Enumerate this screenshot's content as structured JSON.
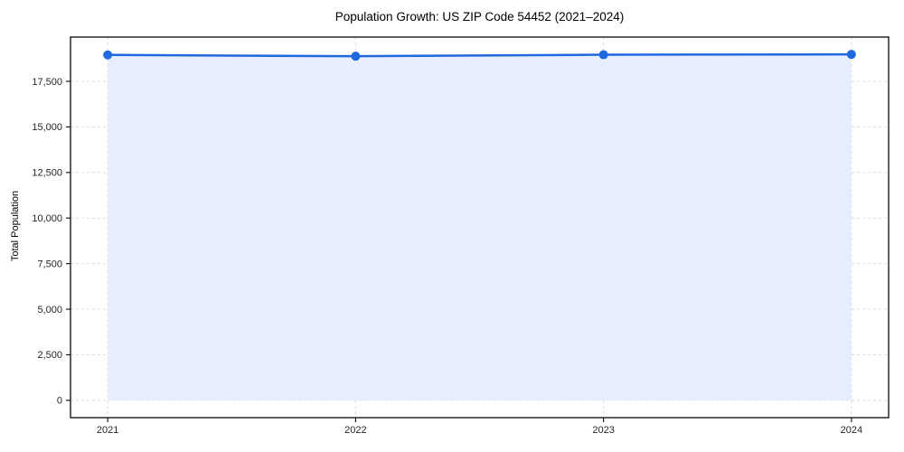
{
  "figure": {
    "background": "#ffffff"
  },
  "chart_data": {
    "type": "line",
    "title": "Population Growth: US ZIP Code 54452 (2021–2024)",
    "xlabel": "",
    "ylabel": "Total Population",
    "x": [
      2021,
      2022,
      2023,
      2024
    ],
    "x_tick_labels": [
      "2021",
      "2022",
      "2023",
      "2024"
    ],
    "values": [
      18950,
      18880,
      18960,
      18980
    ],
    "series": [
      {
        "name": "Total Population",
        "values": [
          18950,
          18880,
          18960,
          18980
        ]
      }
    ],
    "area_fill": true,
    "markers": true,
    "legend": "none",
    "grid": {
      "style": "dashed",
      "horizontal": true,
      "vertical": true
    },
    "xlim": [
      2020.85,
      2024.15
    ],
    "ylim": [
      -950,
      19930
    ],
    "y_ticks": [
      0,
      2500,
      5000,
      7500,
      10000,
      12500,
      15000,
      17500
    ],
    "y_tick_labels": [
      "0",
      "2,500",
      "5,000",
      "7,500",
      "10,000",
      "12,500",
      "15,000",
      "17,500"
    ],
    "colors": {
      "line": "#2068df",
      "marker": "#2068df",
      "fill": "#e6edfc",
      "grid": "#dcdcdc",
      "spine": "#1a1a1a",
      "text": "#262626"
    }
  }
}
